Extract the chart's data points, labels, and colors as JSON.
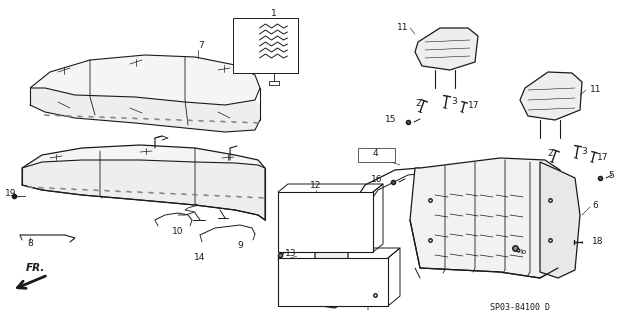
{
  "bg_color": "#ffffff",
  "lc": "#1a1a1a",
  "diagram_code": "SP03-84100 D",
  "fig_width": 6.4,
  "fig_height": 3.19,
  "dpi": 100,
  "font_size": 6.5,
  "code_font_size": 6
}
